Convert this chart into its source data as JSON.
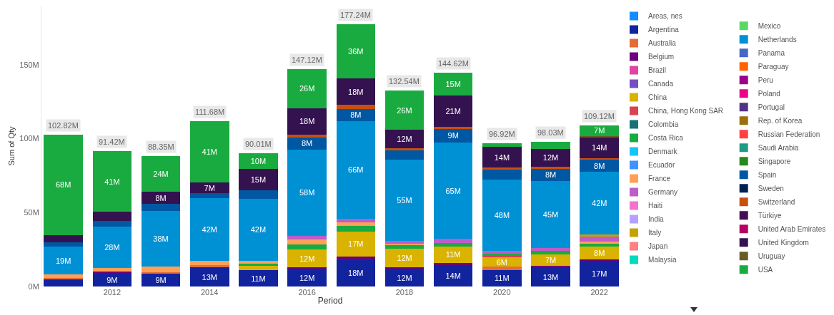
{
  "chart_data": {
    "type": "bar",
    "stacked": true,
    "xlabel": "Period",
    "ylabel": "Sum of Qty",
    "legend": "right",
    "x": [
      2011,
      2012,
      2013,
      2014,
      2015,
      2016,
      2017,
      2018,
      2019,
      2020,
      2021,
      2022
    ],
    "xlim": [
      2010.55,
      2022.4
    ],
    "xticks": [
      2012,
      2014,
      2016,
      2018,
      2020,
      2022
    ],
    "ylim": [
      0,
      190
    ],
    "yticks": [
      {
        "value": 0,
        "label": "0M"
      },
      {
        "value": 50,
        "label": "50M"
      },
      {
        "value": 100,
        "label": "100M"
      },
      {
        "value": 150,
        "label": "150M"
      }
    ],
    "totals": [
      "102.82M",
      "91.42M",
      "88.35M",
      "111.68M",
      "90.01M",
      "147.12M",
      "177.24M",
      "132.54M",
      "144.62M",
      "96.92M",
      "98.03M",
      "109.12M"
    ],
    "series": [
      {
        "name": "Areas, nes",
        "color": "#118dff",
        "values": [
          null,
          null,
          null,
          null,
          null,
          null,
          null,
          null,
          null,
          null,
          null,
          null
        ]
      },
      {
        "name": "Argentina",
        "color": "#12239e",
        "values": [
          5,
          9,
          9,
          13,
          11,
          12,
          18,
          12,
          14.4,
          11.1,
          13,
          17
        ],
        "value_labels": [
          null,
          "9M",
          "9M",
          "13M",
          "11M",
          "12M",
          "18M",
          "12M",
          "14M",
          "11M",
          "13M",
          "17M"
        ]
      },
      {
        "name": "Australia",
        "color": "#e66c37",
        "values": [
          1,
          null,
          0.8,
          1.5,
          null,
          null,
          null,
          null,
          null,
          2.2,
          null,
          null
        ]
      },
      {
        "name": "Belgium",
        "color": "#6b007b",
        "values": [
          null,
          1,
          null,
          null,
          null,
          1,
          2.3,
          1,
          1.5,
          null,
          1.2,
          1.5
        ]
      },
      {
        "name": "Brazil",
        "color": "#e044a7",
        "values": [
          null,
          null,
          null,
          null,
          null,
          null,
          null,
          null,
          null,
          null,
          null,
          null
        ]
      },
      {
        "name": "Canada",
        "color": "#744ec2",
        "values": [
          null,
          null,
          null,
          null,
          null,
          null,
          null,
          null,
          null,
          null,
          null,
          null
        ]
      },
      {
        "name": "China",
        "color": "#d9b300",
        "values": [
          null,
          null,
          null,
          null,
          2.8,
          12,
          17,
          12.4,
          11.3,
          6.4,
          7.4,
          8.4
        ],
        "value_labels": [
          null,
          null,
          null,
          null,
          null,
          "12M",
          "17M",
          "12M",
          "11M",
          "6M",
          "7M",
          "8M"
        ]
      },
      {
        "name": "China, Hong Kong SAR",
        "color": "#d64550",
        "values": [
          null,
          null,
          null,
          null,
          null,
          null,
          null,
          null,
          null,
          1.2,
          null,
          null
        ]
      },
      {
        "name": "Colombia",
        "color": "#197278",
        "values": [
          null,
          null,
          null,
          null,
          null,
          null,
          null,
          null,
          null,
          null,
          null,
          null
        ]
      },
      {
        "name": "Costa Rica",
        "color": "#1aab40",
        "values": [
          null,
          null,
          null,
          null,
          1.5,
          3.4,
          3.6,
          2.7,
          2,
          1.5,
          2.4,
          2
        ]
      },
      {
        "name": "Denmark",
        "color": "#15c6f4",
        "values": [
          null,
          null,
          null,
          null,
          null,
          null,
          null,
          null,
          null,
          null,
          null,
          null
        ]
      },
      {
        "name": "Ecuador",
        "color": "#4092ff",
        "values": [
          null,
          null,
          null,
          null,
          null,
          null,
          null,
          null,
          null,
          null,
          null,
          null
        ]
      },
      {
        "name": "France",
        "color": "#ffa058",
        "values": [
          2,
          2.5,
          3.5,
          2.7,
          2,
          3.6,
          2.7,
          1,
          null,
          null,
          null,
          1.6
        ]
      },
      {
        "name": "Germany",
        "color": "#be5dc9",
        "values": [
          null,
          null,
          null,
          null,
          null,
          2.3,
          2.3,
          1.6,
          3,
          1.9,
          1.9,
          3.22
        ]
      },
      {
        "name": "Haiti",
        "color": "#f472d0",
        "values": [
          null,
          null,
          null,
          null,
          null,
          null,
          null,
          null,
          null,
          null,
          null,
          null
        ]
      },
      {
        "name": "India",
        "color": "#b5a1ff",
        "values": [
          null,
          null,
          null,
          null,
          null,
          null,
          null,
          null,
          null,
          null,
          null,
          null
        ]
      },
      {
        "name": "Italy",
        "color": "#c4a200",
        "values": [
          null,
          null,
          null,
          null,
          null,
          null,
          null,
          null,
          null,
          null,
          null,
          1.5
        ]
      },
      {
        "name": "Japan",
        "color": "#ff8080",
        "values": [
          null,
          null,
          null,
          null,
          null,
          null,
          null,
          null,
          null,
          null,
          null,
          null
        ]
      },
      {
        "name": "Malaysia",
        "color": "#00dbbc",
        "values": [
          null,
          null,
          null,
          null,
          null,
          null,
          null,
          null,
          null,
          null,
          null,
          null
        ]
      },
      {
        "name": "Mexico",
        "color": "#5bd667",
        "values": [
          null,
          null,
          null,
          null,
          null,
          null,
          null,
          null,
          null,
          null,
          null,
          null
        ]
      },
      {
        "name": "Netherlands",
        "color": "#0091d5",
        "values": [
          19,
          28,
          38,
          42.4,
          42.2,
          58.4,
          66,
          55.2,
          65.2,
          48.2,
          45.4,
          42.3
        ],
        "value_labels": [
          "19M",
          "28M",
          "38M",
          "42M",
          "42M",
          "58M",
          "66M",
          "55M",
          "65M",
          "48M",
          "45M",
          "42M"
        ]
      },
      {
        "name": "Panama",
        "color": "#4668c5",
        "values": [
          null,
          null,
          null,
          null,
          null,
          null,
          null,
          null,
          null,
          null,
          null,
          null
        ]
      },
      {
        "name": "Paraguay",
        "color": "#ff6300",
        "values": [
          null,
          null,
          null,
          null,
          null,
          null,
          null,
          null,
          null,
          null,
          null,
          null
        ]
      },
      {
        "name": "Peru",
        "color": "#99008a",
        "values": [
          null,
          null,
          null,
          null,
          null,
          null,
          null,
          null,
          null,
          null,
          null,
          null
        ]
      },
      {
        "name": "Poland",
        "color": "#ec008c",
        "values": [
          null,
          null,
          null,
          null,
          null,
          null,
          null,
          null,
          null,
          null,
          null,
          null
        ]
      },
      {
        "name": "Portugal",
        "color": "#533285",
        "values": [
          null,
          null,
          null,
          null,
          null,
          null,
          null,
          null,
          null,
          null,
          null,
          null
        ]
      },
      {
        "name": "Rep. of Korea",
        "color": "#99700a",
        "values": [
          null,
          null,
          null,
          null,
          null,
          null,
          null,
          null,
          null,
          null,
          null,
          null
        ]
      },
      {
        "name": "Russian Federation",
        "color": "#ff4141",
        "values": [
          null,
          null,
          null,
          null,
          null,
          null,
          null,
          null,
          null,
          null,
          null,
          null
        ]
      },
      {
        "name": "Saudi Arabia",
        "color": "#1f9a85",
        "values": [
          null,
          null,
          null,
          null,
          null,
          null,
          null,
          null,
          null,
          null,
          null,
          null
        ]
      },
      {
        "name": "Singapore",
        "color": "#25891c",
        "values": [
          null,
          null,
          null,
          null,
          null,
          null,
          null,
          null,
          null,
          null,
          null,
          null
        ]
      },
      {
        "name": "Spain",
        "color": "#0057a2",
        "values": [
          3.02,
          3.92,
          4.65,
          3.68,
          5.51,
          8,
          8.4,
          6.34,
          9.4,
          6.42,
          8.4,
          8.4
        ],
        "value_labels": [
          null,
          null,
          null,
          null,
          null,
          "8M",
          "8M",
          null,
          "9M",
          null,
          "8M",
          "8M"
        ]
      },
      {
        "name": "Sweden",
        "color": "#002050",
        "values": [
          null,
          null,
          null,
          null,
          null,
          null,
          null,
          null,
          null,
          null,
          null,
          null
        ]
      },
      {
        "name": "Switzerland",
        "color": "#c94f0f",
        "values": [
          null,
          null,
          null,
          null,
          null,
          2.02,
          2.54,
          1.5,
          1.42,
          1.5,
          1.43,
          1
        ]
      },
      {
        "name": "Türkiye",
        "color": "#450f54",
        "values": [
          null,
          null,
          null,
          null,
          null,
          null,
          null,
          null,
          null,
          null,
          null,
          null
        ]
      },
      {
        "name": "United Arab Emirates",
        "color": "#b60064",
        "values": [
          null,
          null,
          null,
          null,
          null,
          null,
          null,
          null,
          null,
          null,
          null,
          null
        ]
      },
      {
        "name": "United Kingdom",
        "color": "#34124f",
        "values": [
          4.8,
          6,
          8,
          7,
          14.6,
          18,
          18,
          12.4,
          21,
          14.1,
          12,
          14
        ],
        "value_labels": [
          null,
          null,
          "8M",
          "7M",
          "15M",
          "18M",
          "18M",
          "12M",
          "21M",
          "14M",
          "12M",
          "14M"
        ]
      },
      {
        "name": "Uruguay",
        "color": "#6a5a29",
        "values": [
          null,
          null,
          null,
          null,
          null,
          null,
          null,
          null,
          null,
          null,
          null,
          1
        ]
      },
      {
        "name": "USA",
        "color": "#1aab40",
        "values": [
          68,
          41,
          24.4,
          41.4,
          10.4,
          26.4,
          36.4,
          26.4,
          15.4,
          2.4,
          4.9,
          7.2
        ],
        "value_labels": [
          "68M",
          "41M",
          "24M",
          "41M",
          "10M",
          "26M",
          "36M",
          "26M",
          "15M",
          null,
          null,
          "7M"
        ]
      }
    ]
  }
}
